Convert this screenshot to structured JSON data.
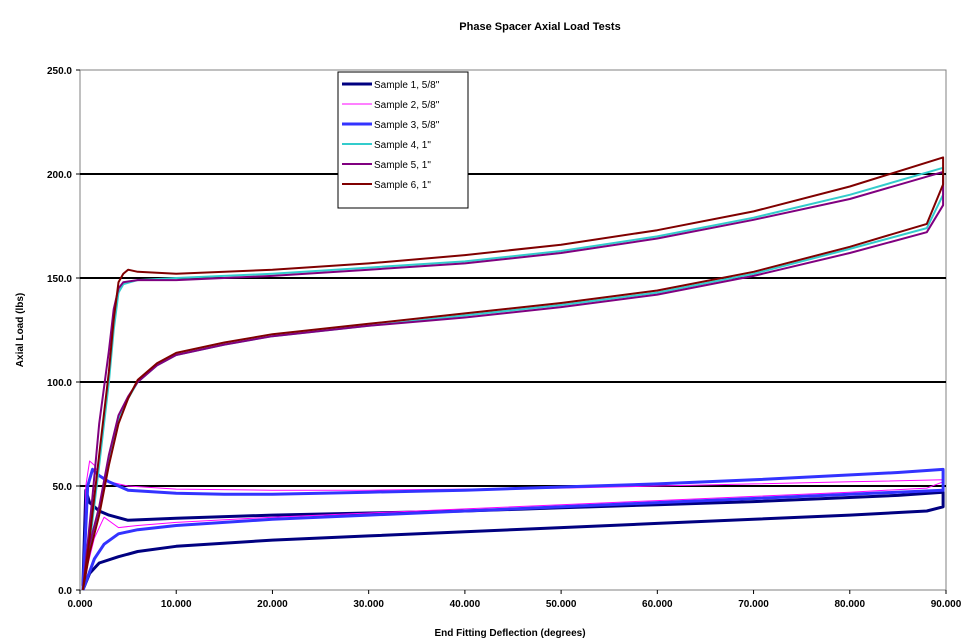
{
  "chart_data": {
    "type": "line",
    "title": "Phase Spacer Axial Load Tests",
    "xlabel": "End Fitting Deflection (degrees)",
    "ylabel": "Axial Load (lbs)",
    "xlim": [
      0,
      90
    ],
    "ylim": [
      0,
      250
    ],
    "xticks": [
      0,
      10,
      20,
      30,
      40,
      50,
      60,
      70,
      80,
      90
    ],
    "xtick_labels": [
      "0.000",
      "10.000",
      "20.000",
      "30.000",
      "40.000",
      "50.000",
      "60.000",
      "70.000",
      "80.000",
      "90.000"
    ],
    "yticks": [
      0,
      50,
      100,
      150,
      200,
      250
    ],
    "ytick_labels": [
      "0.0",
      "50.0",
      "100.0",
      "150.0",
      "200.0",
      "250.0"
    ],
    "grid": "horizontal major gridlines",
    "legend_position": "top-left inside plot",
    "series": [
      {
        "name": "Sample 1, 5/8\"",
        "color": "#000080",
        "line_width": 3,
        "points": [
          [
            0.3,
            0
          ],
          [
            1,
            8
          ],
          [
            2,
            13
          ],
          [
            4,
            16
          ],
          [
            6,
            18.5
          ],
          [
            10,
            21
          ],
          [
            20,
            24
          ],
          [
            30,
            26
          ],
          [
            40,
            28
          ],
          [
            50,
            30
          ],
          [
            60,
            32
          ],
          [
            70,
            34
          ],
          [
            80,
            36
          ],
          [
            88,
            38
          ],
          [
            89.7,
            40
          ],
          [
            89.7,
            47
          ],
          [
            85,
            45.5
          ],
          [
            70,
            42.5
          ],
          [
            60,
            41
          ],
          [
            50,
            39.5
          ],
          [
            40,
            38
          ],
          [
            30,
            37
          ],
          [
            20,
            36
          ],
          [
            10,
            34.5
          ],
          [
            5,
            33.5
          ],
          [
            3,
            36
          ],
          [
            2,
            38
          ],
          [
            1.5,
            40
          ],
          [
            1,
            42
          ],
          [
            0.6,
            48
          ],
          [
            0.3,
            2
          ]
        ]
      },
      {
        "name": "Sample 2, 5/8\"",
        "color": "#ff00ff",
        "line_width": 1,
        "points": [
          [
            0.4,
            0
          ],
          [
            0.8,
            12
          ],
          [
            1.5,
            25
          ],
          [
            2.5,
            35
          ],
          [
            4,
            30
          ],
          [
            6,
            31
          ],
          [
            10,
            32.5
          ],
          [
            20,
            35
          ],
          [
            30,
            37
          ],
          [
            40,
            39
          ],
          [
            50,
            41
          ],
          [
            60,
            43
          ],
          [
            70,
            45
          ],
          [
            80,
            47
          ],
          [
            88,
            49
          ],
          [
            89.7,
            52
          ],
          [
            89.7,
            53
          ],
          [
            80,
            52
          ],
          [
            70,
            51
          ],
          [
            60,
            50
          ],
          [
            50,
            49
          ],
          [
            40,
            48.5
          ],
          [
            30,
            48
          ],
          [
            20,
            48
          ],
          [
            10,
            48.5
          ],
          [
            5,
            50
          ],
          [
            3,
            52
          ],
          [
            2,
            55
          ],
          [
            1.5,
            60
          ],
          [
            1,
            62
          ],
          [
            0.6,
            50
          ],
          [
            0.4,
            0
          ]
        ]
      },
      {
        "name": "Sample 3, 5/8\"",
        "color": "#3333ff",
        "line_width": 3,
        "points": [
          [
            0.3,
            0
          ],
          [
            1.5,
            15
          ],
          [
            2.5,
            22
          ],
          [
            4,
            27
          ],
          [
            6,
            29
          ],
          [
            10,
            31
          ],
          [
            20,
            34
          ],
          [
            30,
            36
          ],
          [
            40,
            38
          ],
          [
            50,
            40
          ],
          [
            60,
            42
          ],
          [
            70,
            44
          ],
          [
            80,
            46
          ],
          [
            89.7,
            48
          ],
          [
            89.7,
            58
          ],
          [
            85,
            56.5
          ],
          [
            70,
            53
          ],
          [
            60,
            51
          ],
          [
            50,
            49.5
          ],
          [
            40,
            48
          ],
          [
            30,
            47
          ],
          [
            20,
            46
          ],
          [
            15,
            46
          ],
          [
            10,
            46.5
          ],
          [
            5,
            48
          ],
          [
            3,
            52
          ],
          [
            2,
            55
          ],
          [
            1.3,
            58
          ],
          [
            0.8,
            50
          ],
          [
            0.3,
            0
          ]
        ]
      },
      {
        "name": "Sample 4, 1\"",
        "color": "#33cccc",
        "line_width": 2,
        "points": [
          [
            0.3,
            0
          ],
          [
            1,
            20
          ],
          [
            2,
            38
          ],
          [
            3,
            62
          ],
          [
            4,
            82
          ],
          [
            5,
            92
          ],
          [
            6,
            100
          ],
          [
            8,
            108
          ],
          [
            10,
            113
          ],
          [
            15,
            118
          ],
          [
            20,
            122
          ],
          [
            30,
            127
          ],
          [
            40,
            132
          ],
          [
            50,
            137
          ],
          [
            60,
            143
          ],
          [
            70,
            152
          ],
          [
            80,
            164
          ],
          [
            88,
            174
          ],
          [
            89.7,
            190
          ],
          [
            89.7,
            203
          ],
          [
            80,
            190
          ],
          [
            70,
            179
          ],
          [
            60,
            170
          ],
          [
            50,
            163
          ],
          [
            40,
            158
          ],
          [
            30,
            155
          ],
          [
            20,
            152
          ],
          [
            10,
            150
          ],
          [
            6,
            149
          ],
          [
            4.5,
            147
          ],
          [
            4,
            143
          ],
          [
            3.5,
            125
          ],
          [
            3,
            100
          ],
          [
            2,
            60
          ],
          [
            1,
            22
          ],
          [
            0.3,
            0
          ]
        ]
      },
      {
        "name": "Sample 5, 1\"",
        "color": "#800080",
        "line_width": 2,
        "points": [
          [
            0.3,
            0
          ],
          [
            1,
            22
          ],
          [
            2,
            40
          ],
          [
            3,
            65
          ],
          [
            4,
            84
          ],
          [
            5,
            93
          ],
          [
            6,
            100
          ],
          [
            8,
            108
          ],
          [
            10,
            113
          ],
          [
            15,
            118
          ],
          [
            20,
            122
          ],
          [
            30,
            127
          ],
          [
            40,
            131
          ],
          [
            50,
            136
          ],
          [
            60,
            142
          ],
          [
            70,
            151
          ],
          [
            80,
            162
          ],
          [
            88,
            172
          ],
          [
            89.7,
            185
          ],
          [
            89.7,
            201
          ],
          [
            80,
            188
          ],
          [
            70,
            178
          ],
          [
            60,
            169
          ],
          [
            50,
            162
          ],
          [
            40,
            157
          ],
          [
            30,
            154
          ],
          [
            20,
            151
          ],
          [
            10,
            149
          ],
          [
            6,
            149
          ],
          [
            4.5,
            148
          ],
          [
            4,
            145
          ],
          [
            3.5,
            135
          ],
          [
            3,
            115
          ],
          [
            2,
            80
          ],
          [
            1.3,
            45
          ],
          [
            0.3,
            0
          ]
        ]
      },
      {
        "name": "Sample 6, 1\"",
        "color": "#800000",
        "line_width": 2,
        "points": [
          [
            0.3,
            0
          ],
          [
            1,
            18
          ],
          [
            2,
            36
          ],
          [
            3,
            60
          ],
          [
            4,
            80
          ],
          [
            5,
            92
          ],
          [
            6,
            101
          ],
          [
            8,
            109
          ],
          [
            10,
            114
          ],
          [
            15,
            119
          ],
          [
            20,
            123
          ],
          [
            30,
            128
          ],
          [
            40,
            133
          ],
          [
            50,
            138
          ],
          [
            60,
            144
          ],
          [
            70,
            153
          ],
          [
            80,
            165
          ],
          [
            88,
            176
          ],
          [
            89.7,
            195
          ],
          [
            89.7,
            208
          ],
          [
            80,
            194
          ],
          [
            70,
            182
          ],
          [
            60,
            173
          ],
          [
            50,
            166
          ],
          [
            40,
            161
          ],
          [
            30,
            157
          ],
          [
            20,
            154
          ],
          [
            10,
            152
          ],
          [
            6,
            153
          ],
          [
            5,
            154
          ],
          [
            4.5,
            152
          ],
          [
            4,
            148
          ],
          [
            3.5,
            130
          ],
          [
            3,
            105
          ],
          [
            2,
            65
          ],
          [
            1,
            25
          ],
          [
            0.3,
            0
          ]
        ]
      }
    ]
  }
}
